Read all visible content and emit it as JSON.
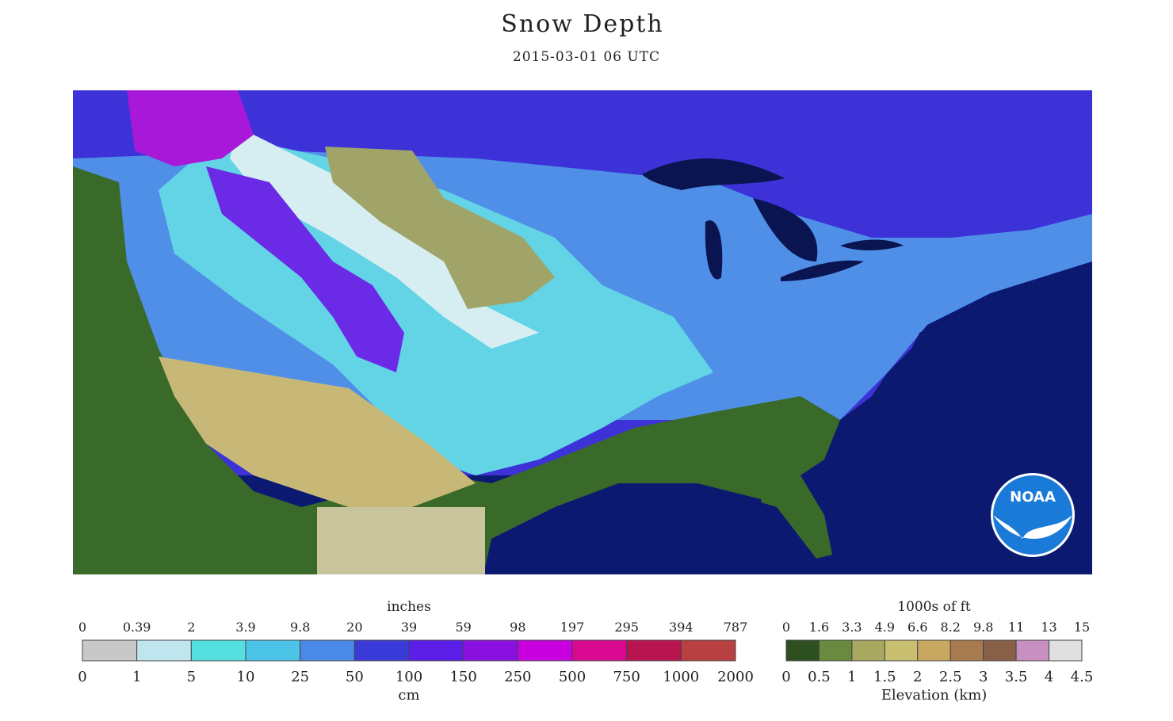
{
  "header": {
    "title": "Snow Depth",
    "subtitle": "2015-03-01 06 UTC"
  },
  "snow_legend": {
    "unit_top": "inches",
    "top_labels": [
      "0",
      "0.39",
      "2",
      "3.9",
      "9.8",
      "20",
      "39",
      "59",
      "98",
      "197",
      "295",
      "394",
      "787"
    ],
    "bottom_labels": [
      "0",
      "1",
      "5",
      "10",
      "25",
      "50",
      "100",
      "150",
      "250",
      "500",
      "750",
      "1000",
      "2000"
    ],
    "unit_bottom": "cm",
    "colors": [
      "#c8c8c8",
      "#bfe6ee",
      "#55e0e0",
      "#4cc4e8",
      "#4a8ae6",
      "#3a3ad8",
      "#5a1ee6",
      "#8a10e0",
      "#c800e0",
      "#d80890",
      "#b81450",
      "#b84040"
    ]
  },
  "elevation_legend": {
    "unit_top": "1000s of ft",
    "top_labels": [
      "0",
      "1.6",
      "3.3",
      "4.9",
      "6.6",
      "8.2",
      "9.8",
      "11",
      "13",
      "15"
    ],
    "bottom_labels": [
      "0",
      "0.5",
      "1",
      "1.5",
      "2",
      "2.5",
      "3",
      "3.5",
      "4",
      "4.5"
    ],
    "unit_bottom": "Elevation (km)",
    "colors": [
      "#2e5020",
      "#6a8a40",
      "#a8a860",
      "#c8c070",
      "#c8a860",
      "#a87a50",
      "#886048",
      "#c890c0",
      "#e0e0e0"
    ]
  },
  "logo": {
    "text": "NOAA"
  }
}
